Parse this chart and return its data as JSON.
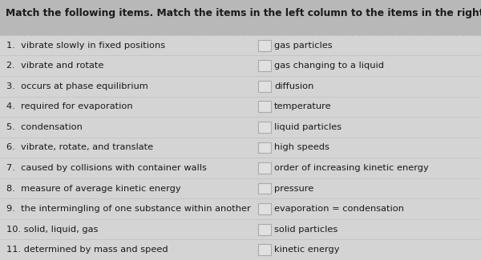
{
  "title": "Match the following items. Match the items in the left column to the items in the right column.",
  "title_fontsize": 8.8,
  "title_fontstyle": "bold",
  "bg_color": "#c8c8c8",
  "content_bg": "#d4d4d4",
  "left_items": [
    "1.  vibrate slowly in fixed positions",
    "2.  vibrate and rotate",
    "3.  occurs at phase equilibrium",
    "4.  required for evaporation",
    "5.  condensation",
    "6.  vibrate, rotate, and translate",
    "7.  caused by collisions with container walls",
    "8.  measure of average kinetic energy",
    "9.  the intermingling of one substance within another",
    "10. solid, liquid, gas",
    "11. determined by mass and speed"
  ],
  "right_items": [
    "gas particles",
    "gas changing to a liquid",
    "diffusion",
    "temperature",
    "liquid particles",
    "high speeds",
    "order of increasing kinetic energy",
    "pressure",
    "evaporation = condensation",
    "solid particles",
    "kinetic energy"
  ],
  "item_fontsize": 8.2,
  "box_facecolor": "#e0e0e0",
  "box_edgecolor": "#aaaaaa",
  "text_color": "#1a1a1a",
  "separator_color": "#aaaaaa",
  "title_bg": "#b8b8b8"
}
